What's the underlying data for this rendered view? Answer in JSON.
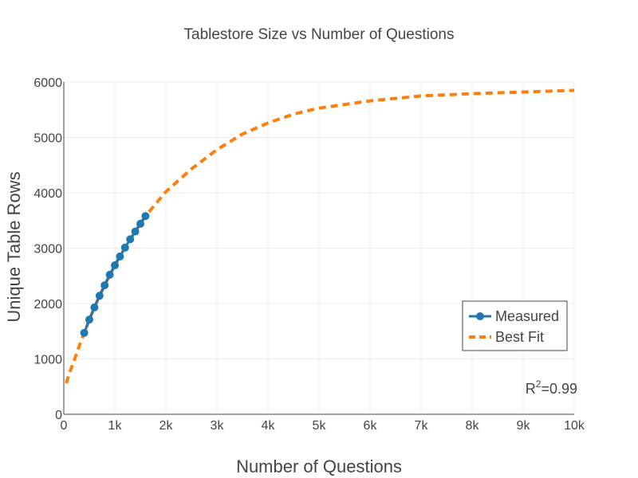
{
  "chart_data": {
    "type": "line",
    "title": "Tablestore Size vs Number of Questions",
    "xlabel": "Number of Questions",
    "ylabel": "Unique Table Rows",
    "xlim": [
      0,
      10000
    ],
    "ylim": [
      0,
      6000
    ],
    "x_ticks": [
      0,
      1000,
      2000,
      3000,
      4000,
      5000,
      6000,
      7000,
      8000,
      9000,
      10000
    ],
    "x_tick_labels": [
      "0",
      "1k",
      "2k",
      "3k",
      "4k",
      "5k",
      "6k",
      "7k",
      "8k",
      "9k",
      "10k"
    ],
    "y_ticks": [
      0,
      1000,
      2000,
      3000,
      4000,
      5000,
      6000
    ],
    "y_tick_labels": [
      "0",
      "1000",
      "2000",
      "3000",
      "4000",
      "5000",
      "6000"
    ],
    "grid": true,
    "legend_position": "bottom-right",
    "annotation": {
      "base": "R",
      "sup": "2",
      "rest": "=0.99"
    },
    "series": [
      {
        "name": "Measured",
        "style": "line+markers",
        "color": "#1f77b4",
        "x": [
          400,
          500,
          600,
          700,
          800,
          900,
          1000,
          1100,
          1200,
          1300,
          1400,
          1500,
          1600
        ],
        "y": [
          1470,
          1710,
          1930,
          2140,
          2330,
          2520,
          2690,
          2850,
          3010,
          3160,
          3300,
          3440,
          3580
        ]
      },
      {
        "name": "Best Fit",
        "style": "dash",
        "color": "#ff7f0e",
        "x": [
          50,
          100,
          200,
          300,
          400,
          500,
          600,
          700,
          800,
          1000,
          1200,
          1400,
          1600,
          1800,
          2000,
          2500,
          3000,
          3500,
          4000,
          4500,
          5000,
          6000,
          7000,
          8000,
          9000,
          10000
        ],
        "y": [
          560,
          720,
          960,
          1230,
          1470,
          1710,
          1930,
          2140,
          2330,
          2690,
          3010,
          3300,
          3580,
          3800,
          4020,
          4430,
          4780,
          5060,
          5260,
          5420,
          5530,
          5660,
          5750,
          5790,
          5820,
          5850
        ]
      }
    ]
  }
}
